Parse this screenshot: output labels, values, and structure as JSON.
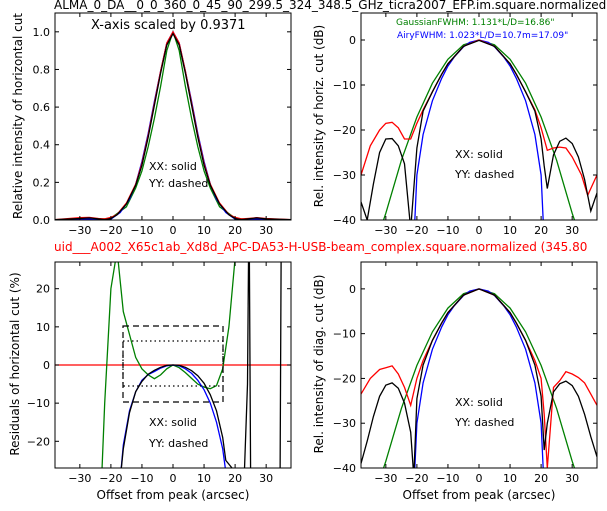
{
  "figure": {
    "title_top": "ALMA_0_DA__0_0_360_0_45_90_299.5_324_348.5_GHz_ticra2007_EFP.im.square.normalized",
    "title_middle": "uid___A002_X65c1ab_Xd8d_APC-DA53-H-USB-beam_complex.square.normalized (345.80",
    "colors": {
      "xx_measured": "#ff0000",
      "model": "#000000",
      "gaussian": "#008000",
      "airy": "#0000ff",
      "zero_line": "#ff0000"
    }
  },
  "chart_data": [
    {
      "id": "tl",
      "type": "line",
      "ylabel": "Relative intensity of horizontal cut",
      "xlabel": "",
      "xlim": [
        -38,
        38
      ],
      "ylim": [
        0,
        1.1
      ],
      "xticks": [
        -30,
        -20,
        -10,
        0,
        10,
        20,
        30
      ],
      "yticks": [
        0.0,
        0.2,
        0.4,
        0.6,
        0.8,
        1.0
      ],
      "ytick_labels": [
        "0.0",
        "0.2",
        "0.4",
        "0.6",
        "0.8",
        "1.0"
      ],
      "annotations": [
        "X-axis scaled by 0.9371",
        "XX: solid",
        "YY: dashed"
      ],
      "series": [
        {
          "color": "#008000",
          "x": [
            -38,
            -30,
            -25,
            -20,
            -15,
            -12,
            -10,
            -8,
            -6,
            -4,
            -2,
            0,
            2,
            4,
            6,
            8,
            10,
            12,
            15,
            20,
            25,
            30,
            38
          ],
          "y": [
            0,
            0,
            0.001,
            0.01,
            0.07,
            0.17,
            0.26,
            0.39,
            0.54,
            0.71,
            0.9,
            1.0,
            0.9,
            0.71,
            0.54,
            0.39,
            0.26,
            0.17,
            0.07,
            0.01,
            0.001,
            0,
            0
          ]
        },
        {
          "color": "#0000ff",
          "x": [
            -38,
            -28,
            -22,
            -20,
            -17,
            -14,
            -12,
            -10,
            -8,
            -6,
            -4,
            -2,
            0,
            2,
            4,
            6,
            8,
            10,
            12,
            14,
            17,
            20,
            22,
            28,
            38
          ],
          "y": [
            0,
            0.006,
            0,
            0.005,
            0.04,
            0.11,
            0.19,
            0.31,
            0.46,
            0.63,
            0.79,
            0.94,
            1.0,
            0.94,
            0.79,
            0.63,
            0.46,
            0.31,
            0.19,
            0.11,
            0.04,
            0.005,
            0,
            0.006,
            0
          ]
        },
        {
          "color": "#ff0000",
          "x": [
            -38,
            -30,
            -27,
            -24,
            -22,
            -20,
            -18,
            -15,
            -12,
            -10,
            -8,
            -6,
            -4,
            -2,
            0,
            2,
            4,
            6,
            8,
            10,
            12,
            15,
            18,
            20,
            22,
            24,
            27,
            30,
            38
          ],
          "y": [
            0.002,
            0.012,
            0.014,
            0.008,
            0.006,
            0.014,
            0.03,
            0.09,
            0.19,
            0.3,
            0.45,
            0.62,
            0.79,
            0.94,
            1.0,
            0.94,
            0.79,
            0.62,
            0.45,
            0.3,
            0.19,
            0.09,
            0.03,
            0.014,
            0.006,
            0.008,
            0.012,
            0.008,
            0.002
          ]
        },
        {
          "color": "#000000",
          "x": [
            -38,
            -30,
            -27,
            -24,
            -22,
            -20,
            -18,
            -15,
            -12,
            -10,
            -8,
            -6,
            -4,
            -2,
            0,
            2,
            4,
            6,
            8,
            10,
            12,
            15,
            18,
            20,
            22,
            24,
            27,
            30,
            38
          ],
          "y": [
            0.002,
            0.008,
            0.011,
            0.006,
            0.002,
            0.008,
            0.028,
            0.085,
            0.185,
            0.29,
            0.44,
            0.61,
            0.78,
            0.93,
            0.99,
            0.93,
            0.78,
            0.61,
            0.44,
            0.29,
            0.185,
            0.085,
            0.028,
            0.008,
            0.002,
            0.006,
            0.011,
            0.006,
            0.002
          ]
        }
      ]
    },
    {
      "id": "tr",
      "type": "line",
      "ylabel": "Rel. intensity of horiz. cut (dB)",
      "xlabel": "",
      "xlim": [
        -38,
        38
      ],
      "ylim": [
        -40,
        6
      ],
      "xticks": [
        -30,
        -20,
        -10,
        0,
        10,
        20,
        30
      ],
      "yticks": [
        0,
        -10,
        -20,
        -30,
        -40
      ],
      "legend": [
        "GaussianFWHM: 1.131*L/D=16.86\"",
        "AiryFWHM: 1.023*L/D=10.7m=17.09\""
      ],
      "annotations": [
        "XX: solid",
        "YY: dashed"
      ],
      "series": [
        {
          "color": "#008000",
          "x": [
            -38,
            -30,
            -25,
            -20,
            -15,
            -10,
            -5,
            0,
            5,
            10,
            15,
            20,
            25,
            30,
            38
          ],
          "y": [
            -55,
            -38.5,
            -26.7,
            -17.1,
            -9.6,
            -4.3,
            -1.07,
            0,
            -1.07,
            -4.3,
            -9.6,
            -17.1,
            -26.7,
            -38.5,
            -55
          ]
        },
        {
          "color": "#0000ff",
          "x": [
            -22,
            -21,
            -20,
            -18,
            -15,
            -12,
            -10,
            -8,
            -5,
            -3,
            0,
            3,
            5,
            8,
            10,
            12,
            15,
            18,
            20,
            21,
            22
          ],
          "y": [
            -55,
            -45,
            -30,
            -21,
            -13.5,
            -8.5,
            -5.8,
            -3.8,
            -1.5,
            -0.5,
            0,
            -0.5,
            -1.5,
            -3.8,
            -5.8,
            -8.5,
            -13.5,
            -21,
            -30,
            -45,
            -55
          ]
        },
        {
          "color": "#ff0000",
          "x": [
            -38,
            -35,
            -32,
            -30,
            -28,
            -26,
            -24,
            -22,
            -20,
            -18,
            -15,
            -12,
            -10,
            -5,
            0,
            5,
            10,
            12,
            15,
            18,
            20,
            22,
            24,
            26,
            28,
            30,
            33,
            35,
            38
          ],
          "y": [
            -30,
            -23.5,
            -20,
            -18.5,
            -18.3,
            -19.5,
            -22,
            -22,
            -18.5,
            -15.5,
            -11.5,
            -7.6,
            -5.3,
            -1.4,
            0,
            -1.4,
            -5.3,
            -7.6,
            -11.5,
            -15.5,
            -19.5,
            -24.5,
            -24,
            -23.8,
            -24,
            -26,
            -30,
            -34.5,
            -30
          ]
        },
        {
          "color": "#000000",
          "x": [
            -38,
            -36,
            -34,
            -32,
            -30,
            -28,
            -26,
            -24,
            -22,
            -20,
            -18,
            -15,
            -12,
            -10,
            -5,
            0,
            5,
            10,
            12,
            15,
            18,
            20,
            21,
            22,
            24,
            26,
            28,
            30,
            32,
            34,
            36,
            38
          ],
          "y": [
            -36,
            -40,
            -32,
            -25,
            -22,
            -21.9,
            -23.5,
            -27.5,
            -42,
            -24,
            -15.8,
            -11.5,
            -7.6,
            -5.3,
            -1.4,
            -0.1,
            -1.4,
            -5.3,
            -7.6,
            -11.5,
            -15.8,
            -22,
            -28,
            -33,
            -25.5,
            -22.5,
            -21.8,
            -23,
            -26,
            -31,
            -38,
            -34
          ]
        }
      ]
    },
    {
      "id": "bl",
      "type": "line",
      "ylabel": "Residuals of horizontal cut (%)",
      "xlabel": "Offset from peak (arcsec)",
      "xlim": [
        -38,
        38
      ],
      "ylim": [
        -27,
        27
      ],
      "xticks": [
        -30,
        -20,
        -10,
        0,
        10,
        20,
        30
      ],
      "yticks": [
        20,
        10,
        0,
        -10,
        -20
      ],
      "annotations": [
        "XX: solid",
        "YY: dashed"
      ],
      "series": [
        {
          "color": "#ff0000",
          "x": [
            -38,
            38
          ],
          "y": [
            0,
            0
          ]
        },
        {
          "color": "#008000",
          "x": [
            -23,
            -22,
            -20,
            -18,
            -16,
            -14,
            -12,
            -10,
            -8,
            -6,
            -4,
            -2,
            0,
            2,
            4,
            6,
            8,
            10,
            12,
            14,
            16,
            18,
            20,
            22,
            23
          ],
          "y": [
            -30,
            -10,
            20,
            30,
            14,
            8,
            2,
            -1,
            -2.6,
            -3.6,
            -2.6,
            -1,
            0,
            -0.7,
            -2,
            -3.5,
            -5,
            -5.8,
            -6.2,
            -5.4,
            -1,
            10,
            28,
            30,
            30
          ]
        },
        {
          "color": "#0000ff",
          "x": [
            -17,
            -16,
            -14,
            -12,
            -10,
            -8,
            -6,
            -4,
            -2,
            0,
            2,
            4,
            6,
            8,
            10,
            12,
            14,
            16,
            17
          ],
          "y": [
            -30,
            -21,
            -12,
            -7,
            -4,
            -2.5,
            -1.7,
            -0.8,
            -0.2,
            0,
            -0.2,
            -1,
            -2.2,
            -4,
            -6.5,
            -10,
            -15,
            -22,
            -28
          ]
        },
        {
          "color": "#000000",
          "x": [
            -17,
            -16,
            -14,
            -12,
            -10,
            -8,
            -6,
            -4,
            -2,
            0,
            2,
            4,
            6,
            8,
            10,
            12,
            14,
            16,
            17,
            20,
            23,
            24,
            24.3,
            24.6,
            25,
            34.5,
            34.8,
            35
          ],
          "y": [
            -30,
            -22,
            -12.5,
            -7,
            -4.3,
            -2.4,
            -1.4,
            -0.6,
            -0.1,
            0,
            -0.1,
            -0.6,
            -1.5,
            -2.8,
            -4.8,
            -7.8,
            -12,
            -19,
            -25,
            -28,
            -28,
            -5,
            27,
            27,
            -28,
            -28,
            27,
            27
          ]
        }
      ]
    },
    {
      "id": "br",
      "type": "line",
      "ylabel": "Rel. intensity of diag. cut (dB)",
      "xlabel": "Offset from peak (arcsec)",
      "xlim": [
        -38,
        38
      ],
      "ylim": [
        -40,
        6
      ],
      "xticks": [
        -30,
        -20,
        -10,
        0,
        10,
        20,
        30
      ],
      "yticks": [
        0,
        -10,
        -20,
        -30,
        -40
      ],
      "annotations": [
        "XX: solid",
        "YY: dashed"
      ],
      "series": [
        {
          "color": "#008000",
          "x": [
            -38,
            -30,
            -25,
            -20,
            -15,
            -10,
            -5,
            0,
            5,
            10,
            15,
            20,
            25,
            30,
            38
          ],
          "y": [
            -55,
            -38.5,
            -26.7,
            -17.1,
            -9.6,
            -4.3,
            -1.07,
            0,
            -1.07,
            -4.3,
            -9.6,
            -17.1,
            -26.7,
            -38.5,
            -55
          ]
        },
        {
          "color": "#0000ff",
          "x": [
            -22,
            -21,
            -20,
            -18,
            -15,
            -12,
            -10,
            -8,
            -5,
            -3,
            0,
            3,
            5,
            8,
            10,
            12,
            15,
            18,
            20,
            21,
            22
          ],
          "y": [
            -55,
            -45,
            -30,
            -21,
            -13.5,
            -8.5,
            -5.8,
            -3.8,
            -1.5,
            -0.5,
            0,
            -0.5,
            -1.5,
            -3.8,
            -5.8,
            -8.5,
            -13.5,
            -21,
            -30,
            -45,
            -55
          ]
        },
        {
          "color": "#ff0000",
          "x": [
            -38,
            -35,
            -32,
            -30,
            -28,
            -26,
            -24,
            -22,
            -20,
            -18,
            -15,
            -12,
            -10,
            -5,
            0,
            5,
            10,
            12,
            15,
            18,
            20,
            21,
            22,
            24,
            26,
            28,
            30,
            32,
            34,
            36,
            38
          ],
          "y": [
            -23.5,
            -20,
            -18,
            -17.6,
            -17.2,
            -19,
            -22,
            -26,
            -20,
            -16,
            -11.5,
            -7.6,
            -5.3,
            -1.4,
            0,
            -1.4,
            -5.3,
            -7.6,
            -11.5,
            -16,
            -20,
            -28,
            -40,
            -22,
            -20.5,
            -18.5,
            -19,
            -19.8,
            -21,
            -23.5,
            -26
          ]
        },
        {
          "color": "#000000",
          "x": [
            -38,
            -36,
            -34,
            -32,
            -30,
            -28,
            -26,
            -24,
            -22,
            -21,
            -20,
            -18,
            -15,
            -12,
            -10,
            -5,
            0,
            5,
            10,
            12,
            15,
            18,
            20,
            21,
            22,
            24,
            26,
            28,
            30,
            32,
            34,
            36,
            38
          ],
          "y": [
            -39,
            -34,
            -28.5,
            -24,
            -21.5,
            -21,
            -22.2,
            -25.5,
            -32,
            -42,
            -24.5,
            -17,
            -11.5,
            -7.6,
            -5.3,
            -1.4,
            0,
            -1.4,
            -5.3,
            -7.6,
            -11.5,
            -17,
            -24,
            -36,
            -30,
            -23,
            -21.2,
            -20.6,
            -21.6,
            -24,
            -28,
            -33,
            -37.5
          ]
        }
      ]
    }
  ]
}
